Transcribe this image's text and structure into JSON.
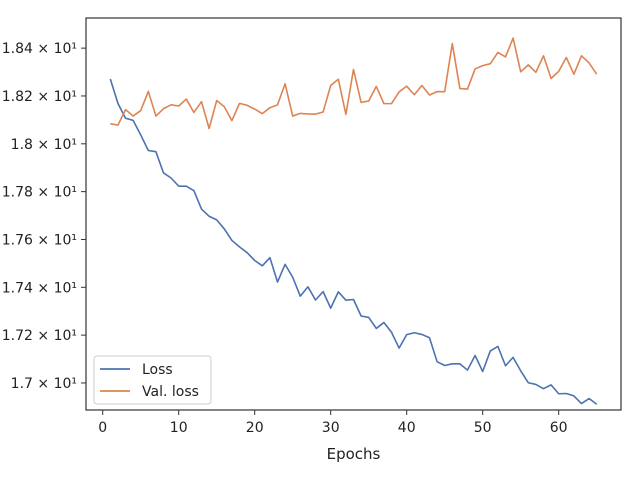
{
  "chart_data": {
    "type": "line",
    "title": "",
    "xlabel": "Epochs",
    "ylabel": "",
    "xlim": [
      -2.2,
      68.2
    ],
    "ylim": [
      16.887,
      18.526
    ],
    "xticks": [
      0,
      10,
      20,
      30,
      40,
      50,
      60
    ],
    "yticks": [
      17.0,
      17.2,
      17.4,
      17.6,
      17.8,
      18.0,
      18.2,
      18.4
    ],
    "ytick_labels": [
      "1.7 × 10¹",
      "1.72 × 10¹",
      "1.74 × 10¹",
      "1.76 × 10¹",
      "1.78 × 10¹",
      "1.8 × 10¹",
      "1.82 × 10¹",
      "1.84 × 10¹"
    ],
    "grid": false,
    "legend": "lower-left",
    "x": [
      1,
      2,
      3,
      4,
      5,
      6,
      7,
      8,
      9,
      10,
      11,
      12,
      13,
      14,
      15,
      16,
      17,
      18,
      19,
      20,
      21,
      22,
      23,
      24,
      25,
      26,
      27,
      28,
      29,
      30,
      31,
      32,
      33,
      34,
      35,
      36,
      37,
      38,
      39,
      40,
      41,
      42,
      43,
      44,
      45,
      46,
      47,
      48,
      49,
      50,
      51,
      52,
      53,
      54,
      55,
      56,
      57,
      58,
      59,
      60,
      61,
      62,
      63,
      64,
      65
    ],
    "series": [
      {
        "name": "Loss",
        "color": "#4c72b0",
        "values": [
          18.271,
          18.169,
          18.107,
          18.098,
          18.037,
          17.972,
          17.967,
          17.878,
          17.857,
          17.823,
          17.823,
          17.804,
          17.727,
          17.697,
          17.682,
          17.644,
          17.596,
          17.569,
          17.545,
          17.512,
          17.49,
          17.524,
          17.422,
          17.496,
          17.442,
          17.363,
          17.402,
          17.347,
          17.382,
          17.313,
          17.381,
          17.346,
          17.349,
          17.28,
          17.274,
          17.228,
          17.253,
          17.212,
          17.146,
          17.202,
          17.21,
          17.203,
          17.189,
          17.089,
          17.073,
          17.08,
          17.08,
          17.054,
          17.115,
          17.048,
          17.134,
          17.153,
          17.072,
          17.107,
          17.051,
          17.001,
          16.994,
          16.976,
          16.992,
          16.955,
          16.956,
          16.946,
          16.914,
          16.935,
          16.911
        ]
      },
      {
        "name": "Val. loss",
        "color": "#dd8452",
        "values": [
          18.084,
          18.078,
          18.143,
          18.116,
          18.139,
          18.219,
          18.116,
          18.147,
          18.163,
          18.158,
          18.187,
          18.131,
          18.176,
          18.064,
          18.181,
          18.155,
          18.097,
          18.169,
          18.161,
          18.145,
          18.126,
          18.151,
          18.163,
          18.251,
          18.116,
          18.127,
          18.125,
          18.124,
          18.133,
          18.244,
          18.27,
          18.123,
          18.311,
          18.173,
          18.179,
          18.24,
          18.168,
          18.168,
          18.217,
          18.241,
          18.205,
          18.244,
          18.204,
          18.218,
          18.218,
          18.419,
          18.231,
          18.229,
          18.313,
          18.327,
          18.335,
          18.382,
          18.363,
          18.442,
          18.301,
          18.33,
          18.299,
          18.368,
          18.273,
          18.303,
          18.361,
          18.291,
          18.368,
          18.338,
          18.291
        ]
      }
    ]
  }
}
